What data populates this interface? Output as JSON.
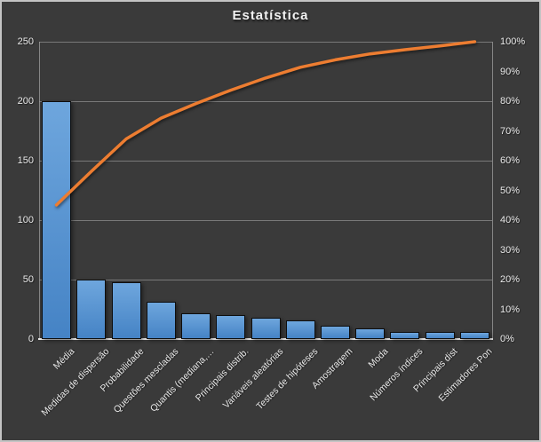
{
  "title": "Estatística",
  "colors": {
    "background": "#3a3a3a",
    "frame": "#c4c4c4",
    "bar_top": "#6ea6dd",
    "bar_bottom": "#4583c5",
    "bar_outline": "#0e0e0e",
    "line": "#ED7D31",
    "gridline": "#8f8f8f",
    "text": "#e8e8e8"
  },
  "chart_data": {
    "type": "bar",
    "subtype": "pareto-with-cumulative-line",
    "title": "Estatística",
    "categories": [
      "Média",
      "Medidas de dispersão",
      "Probabilidade",
      "Questões mescladas",
      "Quantis (mediana,…",
      "Principais distrib.",
      "Variáveis aleatórias",
      "Testes de hipóteses",
      "Amostragem",
      "Moda",
      "Números índices",
      "Principais dist",
      "Estimadores Pon"
    ],
    "series": [
      {
        "type": "bar",
        "axis": "left",
        "values": [
          200,
          50,
          48,
          31,
          22,
          20,
          18,
          16,
          11,
          9,
          6,
          6,
          6
        ]
      },
      {
        "type": "line",
        "axis": "right",
        "values_pct": [
          45.1,
          56.4,
          67.3,
          74.3,
          79.2,
          83.7,
          87.8,
          91.4,
          93.9,
          95.9,
          97.3,
          98.6,
          100
        ]
      }
    ],
    "left_axis": {
      "min": 0,
      "max": 250,
      "ticks_top_to_bottom": [
        "250",
        "200",
        "150",
        "100",
        "50",
        "0"
      ]
    },
    "right_axis": {
      "min_label": "0%",
      "max_label": "100%",
      "ticks_top_to_bottom": [
        "100%",
        "90%",
        "80%",
        "70%",
        "60%",
        "50%",
        "40%",
        "30%",
        "20%",
        "10%",
        "0%"
      ]
    },
    "grid": "horizontal gridlines every 50 units (20%)",
    "legend": "none"
  }
}
